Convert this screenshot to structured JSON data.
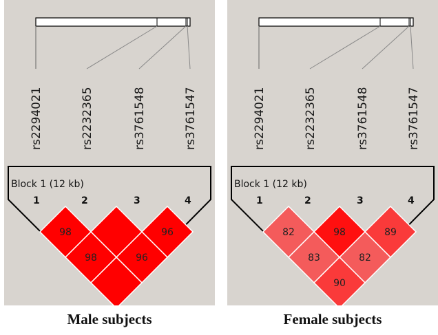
{
  "snps": [
    "rs2294021",
    "rs2232365",
    "rs3761548",
    "rs3761547"
  ],
  "marker_indices": [
    "1",
    "2",
    "3",
    "4"
  ],
  "panels": [
    {
      "block_label": "Block 1 (12 kb)",
      "caption": "Male subjects",
      "cells": [
        {
          "pair": "1-2",
          "label": "98",
          "color": "#ff0000"
        },
        {
          "pair": "2-3",
          "label": "",
          "color": "#ff0000"
        },
        {
          "pair": "3-4",
          "label": "96",
          "color": "#ff0000"
        },
        {
          "pair": "1-3",
          "label": "98",
          "color": "#ff0000"
        },
        {
          "pair": "2-4",
          "label": "96",
          "color": "#ff0000"
        },
        {
          "pair": "1-4",
          "label": "",
          "color": "#ff0000"
        }
      ]
    },
    {
      "block_label": "Block 1 (12 kb)",
      "caption": "Female subjects",
      "cells": [
        {
          "pair": "1-2",
          "label": "82",
          "color": "#f45b5b"
        },
        {
          "pair": "2-3",
          "label": "98",
          "color": "#ff1010"
        },
        {
          "pair": "3-4",
          "label": "89",
          "color": "#fa3a3a"
        },
        {
          "pair": "1-3",
          "label": "83",
          "color": "#f45b5b"
        },
        {
          "pair": "2-4",
          "label": "82",
          "color": "#f45b5b"
        },
        {
          "pair": "1-4",
          "label": "90",
          "color": "#fa3a3a"
        }
      ]
    }
  ]
}
